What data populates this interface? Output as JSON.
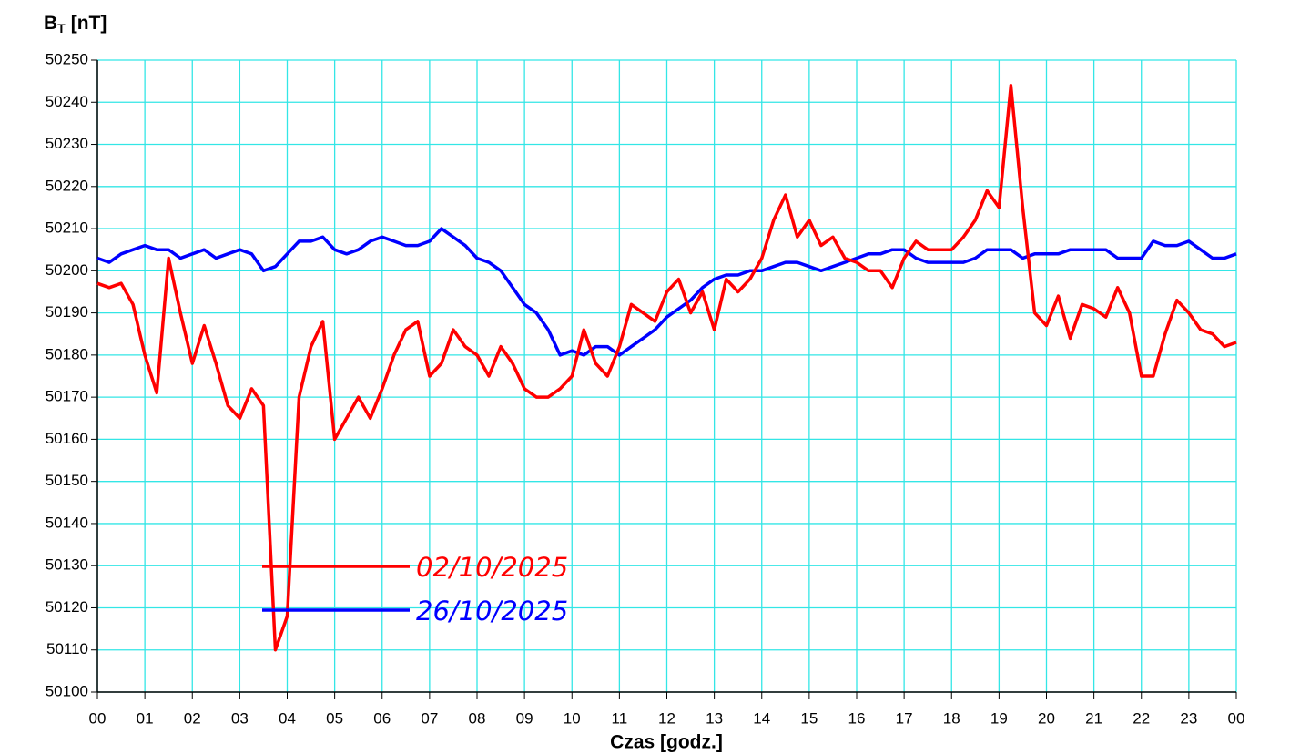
{
  "chart_data": {
    "type": "line",
    "y_label": {
      "main": "B",
      "sub": "T",
      "unit": "[nT]"
    },
    "x_label": "Czas [godz.]",
    "x": [
      0,
      0.25,
      0.5,
      0.75,
      1,
      1.25,
      1.5,
      1.75,
      2,
      2.25,
      2.5,
      2.75,
      3,
      3.25,
      3.5,
      3.75,
      4,
      4.25,
      4.5,
      4.75,
      5,
      5.25,
      5.5,
      5.75,
      6,
      6.25,
      6.5,
      6.75,
      7,
      7.25,
      7.5,
      7.75,
      8,
      8.25,
      8.5,
      8.75,
      9,
      9.25,
      9.5,
      9.75,
      10,
      10.25,
      10.5,
      10.75,
      11,
      11.25,
      11.5,
      11.75,
      12,
      12.25,
      12.5,
      12.75,
      13,
      13.25,
      13.5,
      13.75,
      14,
      14.25,
      14.5,
      14.75,
      15,
      15.25,
      15.5,
      15.75,
      16,
      16.25,
      16.5,
      16.75,
      17,
      17.25,
      17.5,
      17.75,
      18,
      18.25,
      18.5,
      18.75,
      19,
      19.25,
      19.5,
      19.75,
      20,
      20.25,
      20.5,
      20.75,
      21,
      21.25,
      21.5,
      21.75,
      22,
      22.25,
      22.5,
      22.75,
      23,
      23.25,
      23.5,
      23.75,
      24
    ],
    "series": [
      {
        "name": "02/10/2025",
        "color": "#ff0000",
        "values": [
          50197,
          50196,
          50197,
          50192,
          50180,
          50171,
          50203,
          50190,
          50178,
          50187,
          50178,
          50168,
          50165,
          50172,
          50168,
          50110,
          50118,
          50170,
          50182,
          50188,
          50160,
          50165,
          50170,
          50165,
          50172,
          50180,
          50186,
          50188,
          50175,
          50178,
          50186,
          50182,
          50180,
          50175,
          50182,
          50178,
          50172,
          50170,
          50170,
          50172,
          50175,
          50186,
          50178,
          50175,
          50182,
          50192,
          50190,
          50188,
          50195,
          50198,
          50190,
          50195,
          50186,
          50198,
          50195,
          50198,
          50203,
          50212,
          50218,
          50208,
          50212,
          50206,
          50208,
          50203,
          50202,
          50200,
          50200,
          50196,
          50203,
          50207,
          50205,
          50205,
          50205,
          50208,
          50212,
          50219,
          50215,
          50244,
          50215,
          50190,
          50187,
          50194,
          50184,
          50192,
          50191,
          50189,
          50196,
          50190,
          50175,
          50175,
          50185,
          50193,
          50190,
          50186,
          50185,
          50182,
          50183
        ]
      },
      {
        "name": "26/10/2025",
        "color": "#0000ff",
        "values": [
          50203,
          50202,
          50204,
          50205,
          50206,
          50205,
          50205,
          50203,
          50204,
          50205,
          50203,
          50204,
          50205,
          50204,
          50200,
          50201,
          50204,
          50207,
          50207,
          50208,
          50205,
          50204,
          50205,
          50207,
          50208,
          50207,
          50206,
          50206,
          50207,
          50210,
          50208,
          50206,
          50203,
          50202,
          50200,
          50196,
          50192,
          50190,
          50186,
          50180,
          50181,
          50180,
          50182,
          50182,
          50180,
          50182,
          50184,
          50186,
          50189,
          50191,
          50193,
          50196,
          50198,
          50199,
          50199,
          50200,
          50200,
          50201,
          50202,
          50202,
          50201,
          50200,
          50201,
          50202,
          50203,
          50204,
          50204,
          50205,
          50205,
          50203,
          50202,
          50202,
          50202,
          50202,
          50203,
          50205,
          50205,
          50205,
          50203,
          50204,
          50204,
          50204,
          50205,
          50205,
          50205,
          50205,
          50203,
          50203,
          50203,
          50207,
          50206,
          50206,
          50207,
          50205,
          50203,
          50203,
          50204
        ]
      }
    ],
    "xlim": [
      0,
      24
    ],
    "xticks": [
      {
        "value": 0,
        "label": "00"
      },
      {
        "value": 1,
        "label": "01"
      },
      {
        "value": 2,
        "label": "02"
      },
      {
        "value": 3,
        "label": "03"
      },
      {
        "value": 4,
        "label": "04"
      },
      {
        "value": 5,
        "label": "05"
      },
      {
        "value": 6,
        "label": "06"
      },
      {
        "value": 7,
        "label": "07"
      },
      {
        "value": 8,
        "label": "08"
      },
      {
        "value": 9,
        "label": "09"
      },
      {
        "value": 10,
        "label": "10"
      },
      {
        "value": 11,
        "label": "11"
      },
      {
        "value": 12,
        "label": "12"
      },
      {
        "value": 13,
        "label": "13"
      },
      {
        "value": 14,
        "label": "14"
      },
      {
        "value": 15,
        "label": "15"
      },
      {
        "value": 16,
        "label": "16"
      },
      {
        "value": 17,
        "label": "17"
      },
      {
        "value": 18,
        "label": "18"
      },
      {
        "value": 19,
        "label": "19"
      },
      {
        "value": 20,
        "label": "20"
      },
      {
        "value": 21,
        "label": "21"
      },
      {
        "value": 22,
        "label": "22"
      },
      {
        "value": 23,
        "label": "23"
      },
      {
        "value": 24,
        "label": "00"
      }
    ],
    "ylim": [
      50100,
      50250
    ],
    "yticks": [
      50100,
      50110,
      50120,
      50130,
      50140,
      50150,
      50160,
      50170,
      50180,
      50190,
      50200,
      50210,
      50220,
      50230,
      50240,
      50250
    ],
    "grid": true,
    "grid_color": "#33e6e6"
  }
}
